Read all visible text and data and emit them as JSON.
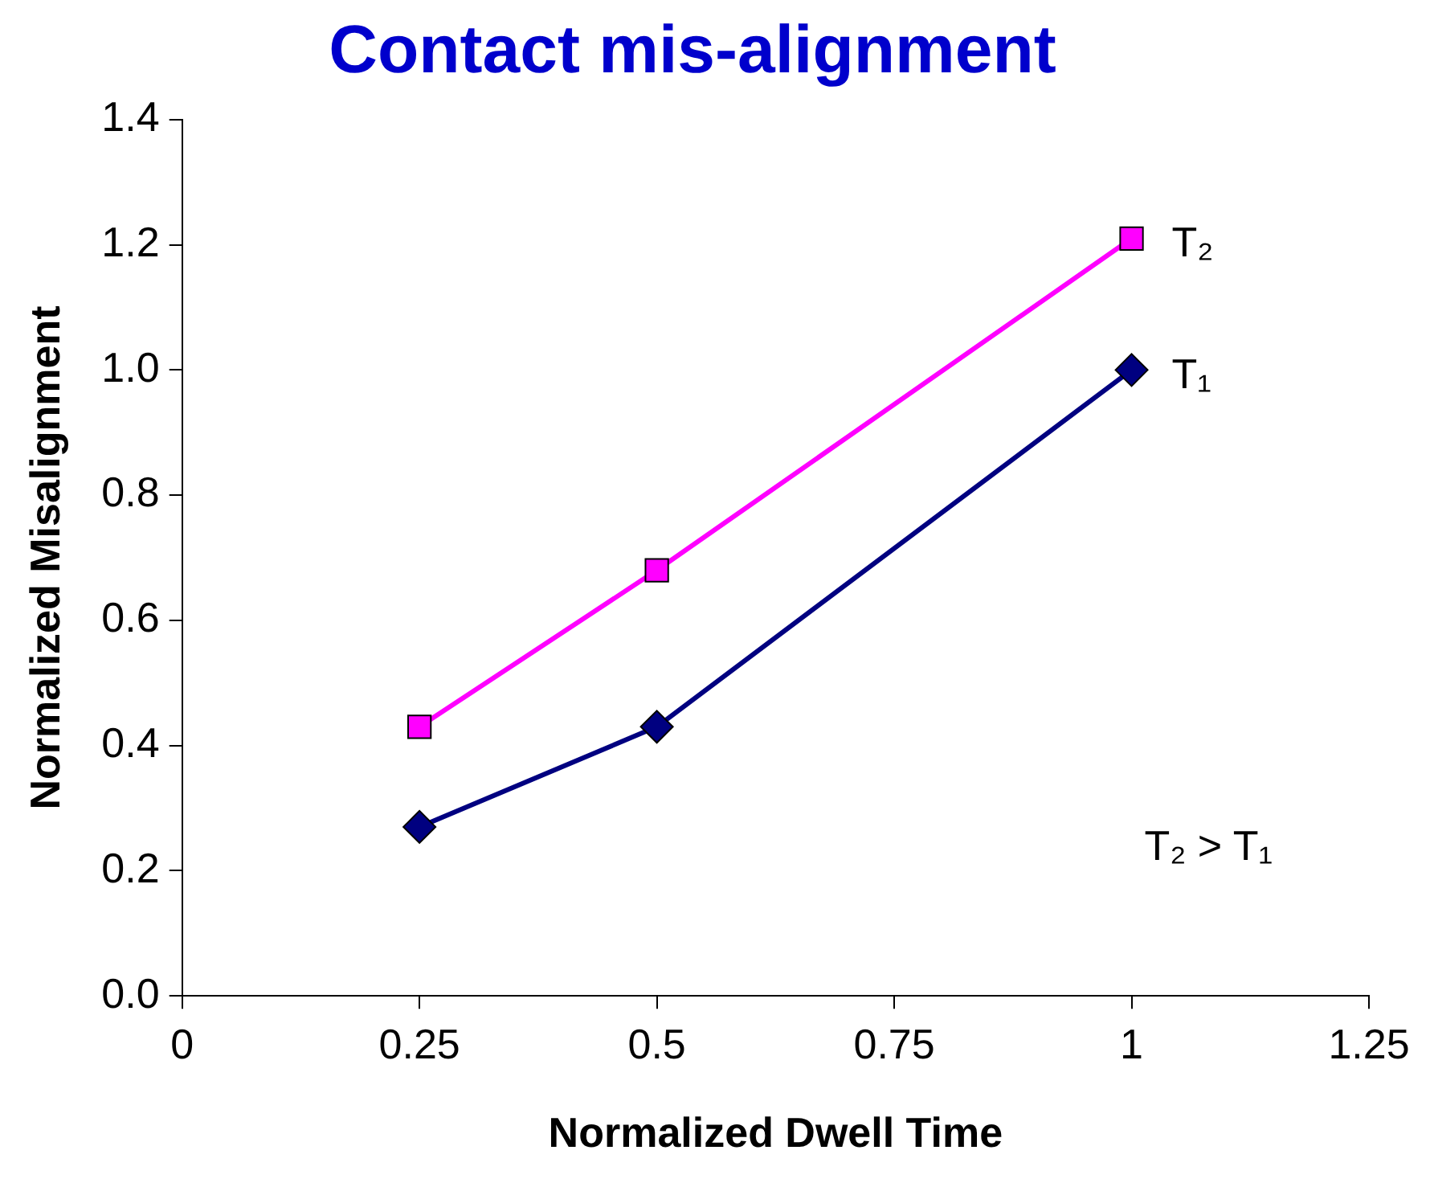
{
  "chart_data": {
    "type": "line",
    "title": "Contact mis-alignment",
    "xlabel": "Normalized Dwell Time",
    "ylabel": "Normalized Misalignment",
    "xlim": [
      0,
      1.25
    ],
    "xticks": [
      0,
      0.25,
      0.5,
      0.75,
      1,
      1.25
    ],
    "ylim": [
      0,
      1.4
    ],
    "yticks": [
      {
        "value": 0,
        "label": "0.0"
      },
      0.2,
      0.4,
      0.6,
      0.8,
      {
        "value": 1,
        "label": "1.0"
      },
      1.2,
      1.4
    ],
    "grid": false,
    "legend": false,
    "series": [
      {
        "name": "T₂",
        "color": "#ff00ff",
        "marker": "square",
        "x": [
          0.25,
          0.5,
          1
        ],
        "values": [
          0.43,
          0.68,
          1.21
        ]
      },
      {
        "name": "T₁",
        "color": "#000080",
        "marker": "diamond",
        "x": [
          0.25,
          0.5,
          1
        ],
        "values": [
          0.27,
          0.43,
          1.0
        ]
      }
    ],
    "annotations": [
      "T₂ > T₁"
    ]
  }
}
